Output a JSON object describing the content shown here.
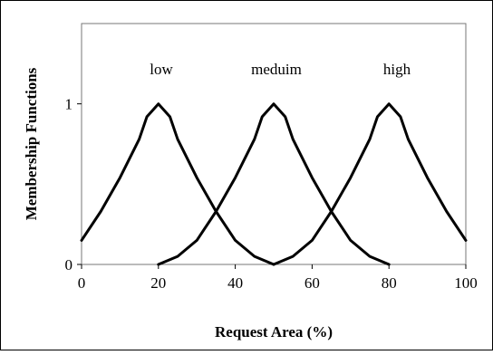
{
  "chart_data": {
    "type": "line",
    "title": "",
    "xlabel": "Request Area (%)",
    "ylabel": "Membership Functions",
    "xlim": [
      0,
      100
    ],
    "ylim": [
      0,
      1.5
    ],
    "xticks": [
      "0",
      "20",
      "40",
      "60",
      "80",
      "100"
    ],
    "yticks": [
      "0",
      "1"
    ],
    "grid": false,
    "legend": "none",
    "line_color": "#000000",
    "series": [
      {
        "name": "low",
        "x": [
          0,
          5,
          10,
          15,
          17,
          20,
          23,
          25,
          30,
          35,
          40,
          45,
          50
        ],
        "y": [
          0.15,
          0.33,
          0.54,
          0.78,
          0.92,
          1.0,
          0.92,
          0.78,
          0.54,
          0.33,
          0.15,
          0.05,
          0.0
        ]
      },
      {
        "name": "meduim",
        "x": [
          20,
          25,
          30,
          35,
          40,
          45,
          47,
          50,
          53,
          55,
          60,
          65,
          70,
          75,
          80
        ],
        "y": [
          0.0,
          0.05,
          0.15,
          0.33,
          0.54,
          0.78,
          0.92,
          1.0,
          0.92,
          0.78,
          0.54,
          0.33,
          0.15,
          0.05,
          0.0
        ]
      },
      {
        "name": "high",
        "x": [
          50,
          55,
          60,
          65,
          70,
          75,
          77,
          80,
          83,
          85,
          90,
          95,
          100
        ],
        "y": [
          0.0,
          0.05,
          0.15,
          0.33,
          0.54,
          0.78,
          0.92,
          1.0,
          0.92,
          0.78,
          0.54,
          0.33,
          0.15
        ]
      }
    ]
  }
}
